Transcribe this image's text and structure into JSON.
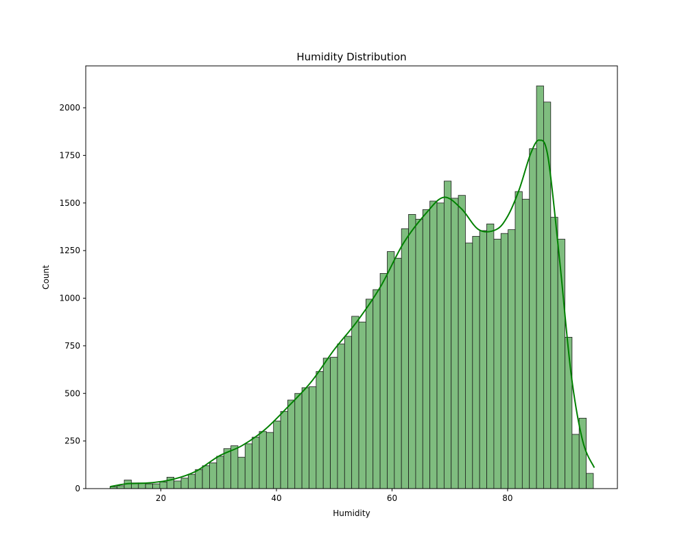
{
  "chart_data": {
    "type": "bar",
    "title": "Humidity Distribution",
    "xlabel": "Humidity",
    "ylabel": "Count",
    "xlim": [
      7,
      99
    ],
    "ylim": [
      0,
      2220
    ],
    "xticks": [
      20,
      40,
      60,
      80
    ],
    "yticks": [
      0,
      250,
      500,
      750,
      1000,
      1250,
      1500,
      1750,
      2000
    ],
    "bin_start": 11.2,
    "bin_width": 1.23,
    "counts": [
      10,
      15,
      45,
      30,
      30,
      25,
      25,
      35,
      60,
      40,
      55,
      75,
      100,
      120,
      135,
      170,
      210,
      225,
      165,
      235,
      270,
      300,
      295,
      355,
      405,
      465,
      500,
      530,
      535,
      615,
      685,
      690,
      760,
      800,
      905,
      875,
      995,
      1045,
      1130,
      1245,
      1210,
      1365,
      1440,
      1415,
      1465,
      1510,
      1500,
      1615,
      1525,
      1540,
      1290,
      1325,
      1355,
      1390,
      1310,
      1340,
      1360,
      1560,
      1520,
      1785,
      2115,
      2030,
      1425,
      1310,
      795,
      285,
      370,
      80
    ],
    "kde": {
      "x": [
        11.2,
        14,
        18,
        22,
        26,
        30,
        34,
        38,
        42,
        46,
        50,
        54,
        58,
        62,
        66,
        69,
        72,
        75,
        78,
        80,
        82,
        84,
        85.5,
        87,
        89,
        91,
        93,
        95
      ],
      "y": [
        10,
        25,
        30,
        48,
        90,
        170,
        225,
        310,
        430,
        560,
        730,
        880,
        1060,
        1290,
        1450,
        1530,
        1470,
        1360,
        1360,
        1430,
        1570,
        1760,
        1830,
        1740,
        1200,
        600,
        250,
        110
      ]
    },
    "colors": {
      "bar_fill": "#7fbd7f",
      "bar_edge": "#1a1a1a",
      "kde_line": "#008000"
    },
    "grid": false,
    "legend": "none"
  }
}
